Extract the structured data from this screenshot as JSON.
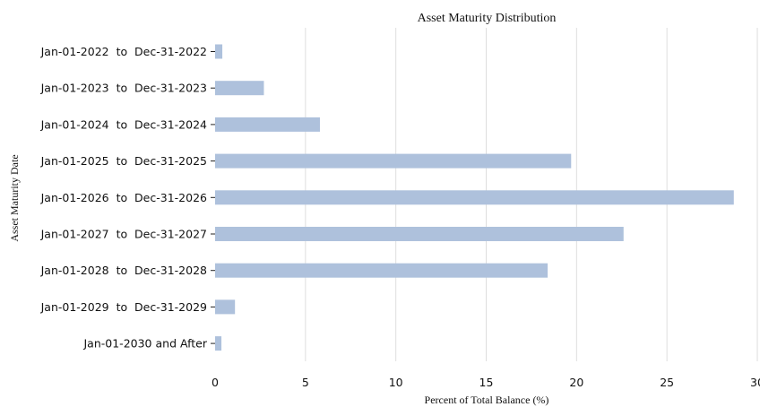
{
  "chart_data": {
    "type": "bar",
    "orientation": "horizontal",
    "title": "Asset Maturity Distribution",
    "xlabel": "Percent of Total Balance (%)",
    "ylabel": "Asset Maturity Date",
    "categories": [
      "Jan-01-2022  to  Dec-31-2022",
      "Jan-01-2023  to  Dec-31-2023",
      "Jan-01-2024  to  Dec-31-2024",
      "Jan-01-2025  to  Dec-31-2025",
      "Jan-01-2026  to  Dec-31-2026",
      "Jan-01-2027  to  Dec-31-2027",
      "Jan-01-2028  to  Dec-31-2028",
      "Jan-01-2029  to  Dec-31-2029",
      "Jan-01-2030 and After"
    ],
    "values": [
      0.4,
      2.7,
      5.8,
      19.7,
      28.7,
      22.6,
      18.4,
      1.1,
      0.35
    ],
    "xlim": [
      0,
      30
    ],
    "xticks": [
      "0",
      "5",
      "10",
      "15",
      "20",
      "25",
      "30"
    ],
    "grid": "vertical",
    "bar_color": "#aec1dc",
    "legend": "none"
  }
}
